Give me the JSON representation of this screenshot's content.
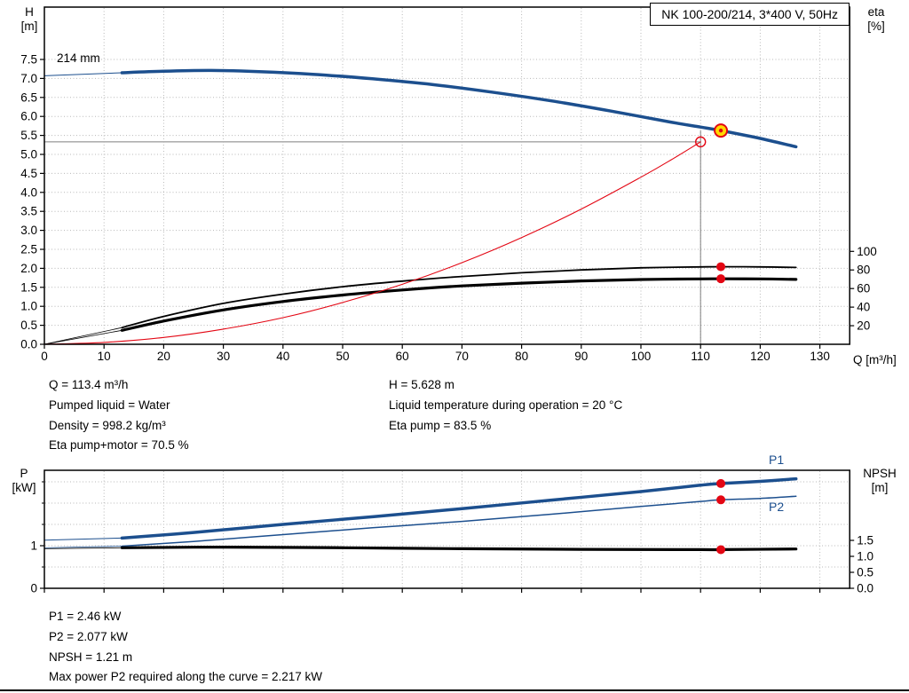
{
  "header": {
    "title_box": "NK 100-200/214, 3*400 V, 50Hz"
  },
  "colors": {
    "blue": "#1c4f8e",
    "red": "#e30613",
    "black": "#000000",
    "gray": "#7f7f7f",
    "yellow": "#ffd800",
    "grid": "#b8b8b8"
  },
  "info_top": {
    "left": [
      "Q = 113.4 m³/h",
      "Pumped liquid = Water",
      "Density = 998.2 kg/m³",
      "Eta pump+motor = 70.5 %"
    ],
    "right": [
      "H = 5.628 m",
      "Liquid temperature during operation = 20 °C",
      "Eta pump = 83.5 %"
    ]
  },
  "info_bottom": [
    "P1 = 2.46 kW",
    "P2 = 2.077 kW",
    "NPSH = 1.21 m",
    "Max power P2 required along the curve = 2.217 kW"
  ],
  "chart_data": [
    {
      "id": "hq",
      "type": "line",
      "axes": {
        "x": {
          "label": "Q [m³/h]",
          "min": 0,
          "max": 135,
          "ticks": [
            0,
            10,
            20,
            30,
            40,
            50,
            60,
            70,
            80,
            90,
            100,
            110,
            120,
            130
          ]
        },
        "y_left": {
          "label_lines": [
            "H",
            "[m]"
          ],
          "min": 0,
          "max": 7.5,
          "ticks": [
            0,
            0.5,
            1,
            1.5,
            2,
            2.5,
            3,
            3.5,
            4,
            4.5,
            5,
            5.5,
            6,
            6.5,
            7,
            7.5
          ]
        },
        "y_right": {
          "label_lines": [
            "eta",
            "[%]"
          ],
          "min": 0,
          "max": 100,
          "ticks": [
            20,
            40,
            60,
            80,
            100
          ]
        }
      },
      "series": [
        {
          "name": "head-curve-214mm",
          "axis": "left",
          "color": "blue",
          "width": 3.5,
          "points": [
            [
              13,
              7.15
            ],
            [
              20,
              7.19
            ],
            [
              28,
              7.21
            ],
            [
              36,
              7.18
            ],
            [
              45,
              7.11
            ],
            [
              55,
              6.99
            ],
            [
              65,
              6.84
            ],
            [
              75,
              6.64
            ],
            [
              85,
              6.41
            ],
            [
              95,
              6.14
            ],
            [
              105,
              5.85
            ],
            [
              110,
              5.72
            ],
            [
              113.4,
              5.628
            ],
            [
              120,
              5.42
            ],
            [
              126,
              5.2
            ]
          ]
        },
        {
          "name": "head-curve-lead",
          "axis": "left",
          "color": "blue",
          "width": 1,
          "points": [
            [
              0,
              7.07
            ],
            [
              13,
              7.15
            ]
          ]
        },
        {
          "name": "eta-pump-curve",
          "axis": "right",
          "color": "black",
          "width": 1.8,
          "points": [
            [
              13,
              18
            ],
            [
              20,
              30
            ],
            [
              30,
              44
            ],
            [
              40,
              54
            ],
            [
              50,
              62
            ],
            [
              60,
              68
            ],
            [
              70,
              73
            ],
            [
              80,
              77
            ],
            [
              90,
              80
            ],
            [
              100,
              82.3
            ],
            [
              110,
              83.3
            ],
            [
              113.4,
              83.5
            ],
            [
              120,
              83.3
            ],
            [
              126,
              82.7
            ]
          ]
        },
        {
          "name": "eta-pump-lead",
          "axis": "right",
          "color": "black",
          "width": 0.8,
          "points": [
            [
              0,
              0
            ],
            [
              13,
              18
            ]
          ]
        },
        {
          "name": "eta-pump-motor-curve",
          "axis": "right",
          "color": "black",
          "width": 3.2,
          "points": [
            [
              13,
              15
            ],
            [
              20,
              25
            ],
            [
              30,
              37
            ],
            [
              40,
              46
            ],
            [
              50,
              53
            ],
            [
              60,
              58.5
            ],
            [
              70,
              62.8
            ],
            [
              80,
              65.8
            ],
            [
              90,
              68.2
            ],
            [
              100,
              69.7
            ],
            [
              110,
              70.4
            ],
            [
              113.4,
              70.5
            ],
            [
              120,
              70.4
            ],
            [
              126,
              69.8
            ]
          ]
        },
        {
          "name": "eta-pump-motor-lead",
          "axis": "right",
          "color": "black",
          "width": 0.8,
          "points": [
            [
              0,
              0
            ],
            [
              13,
              15
            ]
          ]
        },
        {
          "name": "system-curve",
          "axis": "left",
          "color": "red",
          "width": 1.1,
          "points": [
            [
              0,
              0
            ],
            [
              10,
              0.05
            ],
            [
              20,
              0.18
            ],
            [
              30,
              0.4
            ],
            [
              40,
              0.7
            ],
            [
              50,
              1.1
            ],
            [
              60,
              1.58
            ],
            [
              70,
              2.15
            ],
            [
              80,
              2.81
            ],
            [
              90,
              3.56
            ],
            [
              100,
              4.4
            ],
            [
              105,
              4.85
            ],
            [
              110,
              5.33
            ]
          ]
        }
      ],
      "annotations": {
        "impeller_label": {
          "text": "214 mm"
        },
        "crosshair": {
          "x": 110,
          "y": 5.33,
          "y_top": 5.63
        },
        "markers": [
          {
            "name": "duty-point",
            "x": 113.4,
            "y": 5.628,
            "axis": "left",
            "r": 7,
            "fill": "yellow",
            "stroke": "red",
            "sw": 2,
            "center_dot": true
          },
          {
            "name": "rated-point",
            "x": 110,
            "y": 5.33,
            "axis": "left",
            "r": 5.5,
            "fill": "none",
            "stroke": "red",
            "sw": 1.4
          },
          {
            "name": "eta-pump-point",
            "x": 113.4,
            "y": 83.5,
            "axis": "right",
            "r": 5,
            "fill": "red"
          },
          {
            "name": "eta-pump-motor-point",
            "x": 113.4,
            "y": 70.5,
            "axis": "right",
            "r": 5,
            "fill": "red"
          }
        ]
      }
    },
    {
      "id": "power",
      "type": "line",
      "axes": {
        "x": {
          "min": 0,
          "max": 135,
          "ticks": [
            0,
            10,
            20,
            30,
            40,
            50,
            60,
            70,
            80,
            90,
            100,
            110,
            120,
            130
          ],
          "show_labels": false
        },
        "y_left": {
          "label_lines": [
            "P",
            "[kW]"
          ],
          "min": 0,
          "max": 2.77,
          "ticks": [
            0,
            1
          ],
          "minor_ticks": [
            0.5,
            1.5,
            2,
            2.5
          ]
        },
        "y_right": {
          "label_lines": [
            "NPSH",
            "[m]"
          ],
          "min": 0,
          "max": 3.7,
          "ticks": [
            0,
            0.5,
            1,
            1.5
          ]
        }
      },
      "series": [
        {
          "name": "p1-curve",
          "label": "P1",
          "axis": "left",
          "color": "blue",
          "width": 3.5,
          "points": [
            [
              13,
              1.18
            ],
            [
              25,
              1.31
            ],
            [
              40,
              1.5
            ],
            [
              55,
              1.68
            ],
            [
              70,
              1.87
            ],
            [
              85,
              2.07
            ],
            [
              100,
              2.27
            ],
            [
              110,
              2.42
            ],
            [
              113.4,
              2.46
            ],
            [
              120,
              2.51
            ],
            [
              126,
              2.57
            ]
          ]
        },
        {
          "name": "p1-lead",
          "axis": "left",
          "color": "blue",
          "width": 1,
          "points": [
            [
              0,
              1.13
            ],
            [
              13,
              1.18
            ]
          ]
        },
        {
          "name": "p2-curve",
          "label": "P2",
          "axis": "left",
          "color": "blue",
          "width": 1.5,
          "points": [
            [
              13,
              0.99
            ],
            [
              25,
              1.1
            ],
            [
              40,
              1.26
            ],
            [
              55,
              1.42
            ],
            [
              70,
              1.57
            ],
            [
              85,
              1.74
            ],
            [
              100,
              1.92
            ],
            [
              110,
              2.04
            ],
            [
              113.4,
              2.077
            ],
            [
              120,
              2.11
            ],
            [
              126,
              2.16
            ]
          ]
        },
        {
          "name": "p2-lead",
          "axis": "left",
          "color": "blue",
          "width": 0.8,
          "points": [
            [
              0,
              0.95
            ],
            [
              13,
              0.99
            ]
          ]
        },
        {
          "name": "npsh-curve",
          "axis": "right",
          "color": "black",
          "width": 3.2,
          "points": [
            [
              13,
              1.27
            ],
            [
              30,
              1.29
            ],
            [
              50,
              1.27
            ],
            [
              70,
              1.24
            ],
            [
              90,
              1.22
            ],
            [
              110,
              1.21
            ],
            [
              113.4,
              1.21
            ],
            [
              126,
              1.23
            ]
          ]
        },
        {
          "name": "npsh-lead",
          "axis": "right",
          "color": "black",
          "width": 0.8,
          "points": [
            [
              0,
              1.24
            ],
            [
              13,
              1.27
            ]
          ]
        }
      ],
      "annotations": {
        "markers": [
          {
            "name": "p1-point",
            "x": 113.4,
            "y": 2.46,
            "axis": "left",
            "r": 5,
            "fill": "red"
          },
          {
            "name": "p2-point",
            "x": 113.4,
            "y": 2.077,
            "axis": "left",
            "r": 5,
            "fill": "red"
          },
          {
            "name": "npsh-point",
            "x": 113.4,
            "y": 1.21,
            "axis": "right",
            "r": 5,
            "fill": "red"
          }
        ]
      }
    }
  ]
}
